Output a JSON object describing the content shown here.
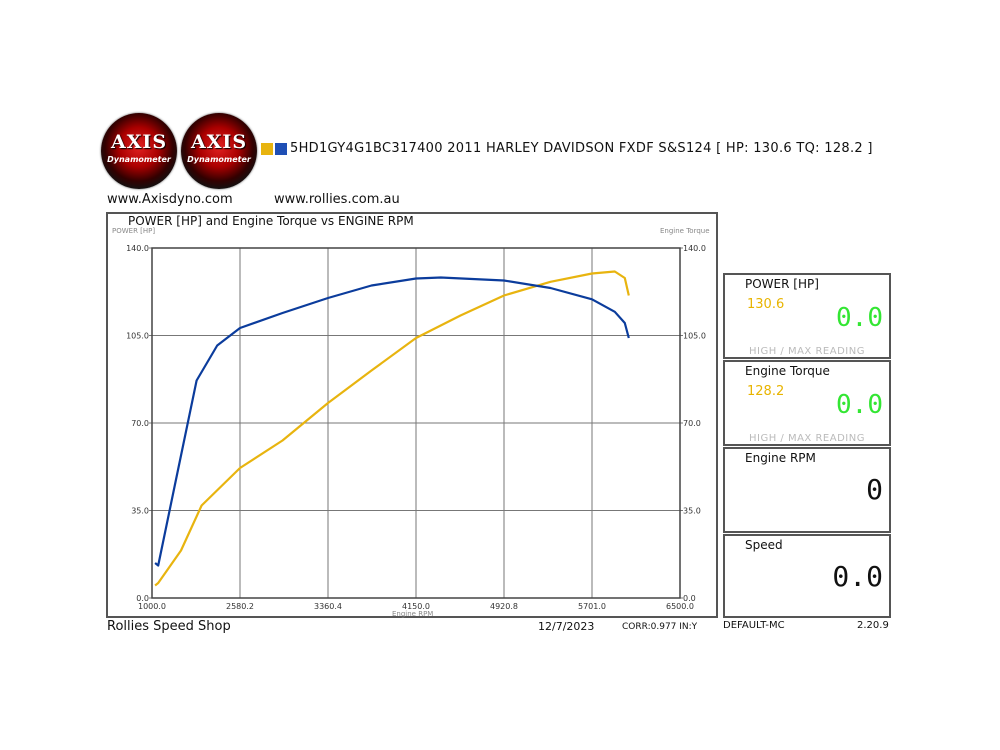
{
  "header": {
    "logo_text": "AXIS",
    "logo_sub": "Dynamometer",
    "legend_colors": [
      "#e8b40f",
      "#1f4fb5"
    ],
    "title": "5HD1GY4G1BC317400 2011 HARLEY DAVIDSON FXDF S&S124 [ HP: 130.6 TQ: 128.2 ]",
    "url_left": "www.Axisdyno.com",
    "url_right": "www.rollies.com.au"
  },
  "chart_data": {
    "type": "line",
    "title": "POWER [HP] and Engine Torque vs ENGINE RPM",
    "xlabel": "Engine RPM",
    "ylabel_left": "POWER [HP]",
    "ylabel_right": "Engine Torque",
    "x_ticks": [
      1000.0,
      2580.2,
      3360.4,
      4150.0,
      4920.8,
      5701.0,
      6500.0
    ],
    "x_tick_labels": [
      "1000.0",
      "2580.2",
      "3360.4",
      "4150.0",
      "4920.8",
      "5701.0",
      "6500.0"
    ],
    "y_ticks": [
      "0.0",
      "35.0",
      "70.0",
      "105.0",
      "140.0"
    ],
    "ylim": [
      0,
      140
    ],
    "grid": true,
    "series": [
      {
        "color": "#e8b40f",
        "x": [
          1056,
          1112,
          1520,
          1890,
          2580,
          2957,
          3360,
          3751,
          4150,
          4540,
          4921,
          5333,
          5701,
          5908,
          5999,
          6035
        ],
        "y": [
          5,
          6,
          19,
          37,
          52,
          63,
          78,
          91,
          104,
          113,
          121,
          126.5,
          129.8,
          130.6,
          128,
          121
        ]
      },
      {
        "color": "#0b3c9c",
        "x": [
          1056,
          1112,
          1428,
          1800,
          2170,
          2580,
          2957,
          3360,
          3751,
          4150,
          4367,
          4921,
          5333,
          5701,
          5908,
          5999,
          6035
        ],
        "y": [
          14,
          13,
          47,
          87,
          101,
          108,
          114,
          120,
          125,
          127.8,
          128.2,
          127,
          124,
          119.5,
          114.5,
          110,
          104
        ]
      }
    ]
  },
  "panels": {
    "power": {
      "title": "POWER [HP]",
      "max": "130.6",
      "current": "0.0",
      "caption": "HIGH / MAX READING"
    },
    "torque": {
      "title": "Engine Torque",
      "max": "128.2",
      "current": "0.0",
      "caption": "HIGH / MAX READING"
    },
    "rpm": {
      "title": "Engine RPM",
      "value": "0"
    },
    "speed": {
      "title": "Speed",
      "value": "0.0"
    }
  },
  "footer": {
    "shop": "Rollies Speed Shop",
    "date": "12/7/2023",
    "corr": "CORR:0.977 IN:Y",
    "profile": "DEFAULT-MC",
    "version": "2.20.9"
  }
}
